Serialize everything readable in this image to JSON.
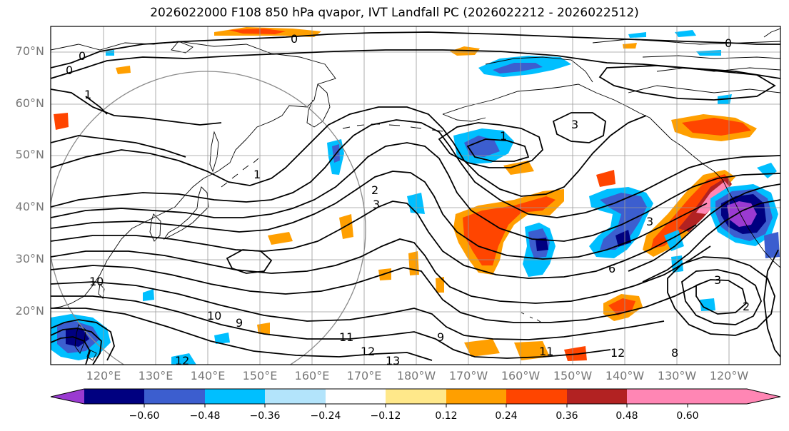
{
  "title": "2026022000 F108 850 hPa qvapor, IVT Landfall PC (2026022212 - 2026022512)",
  "latitude_labels": [
    "70°N",
    "60°N",
    "50°N",
    "40°N",
    "30°N",
    "20°N"
  ],
  "longitude_labels": [
    "120°E",
    "130°E",
    "140°E",
    "150°E",
    "160°E",
    "170°E",
    "180°W",
    "170°W",
    "160°W",
    "150°W",
    "140°W",
    "130°W",
    "120°W"
  ],
  "contour_labels": [
    "0",
    "0",
    "0",
    "0",
    "1",
    "1",
    "1",
    "2",
    "3",
    "3",
    "3",
    "6",
    "9",
    "9",
    "10",
    "11",
    "11",
    "12",
    "12",
    "12",
    "13",
    "10",
    "3",
    "8",
    "2"
  ],
  "colorbar": {
    "tick_labels": [
      "−0.60",
      "−0.48",
      "−0.36",
      "−0.24",
      "−0.12",
      "0.12",
      "0.24",
      "0.36",
      "0.48",
      "0.60"
    ],
    "colors": [
      "#9a3ad1",
      "#000080",
      "#3c5ecf",
      "#00bfff",
      "#b3e4fb",
      "#ffffff",
      "#ffe88a",
      "#ff9f00",
      "#ff4500",
      "#b22222",
      "#ff86b4"
    ]
  }
}
